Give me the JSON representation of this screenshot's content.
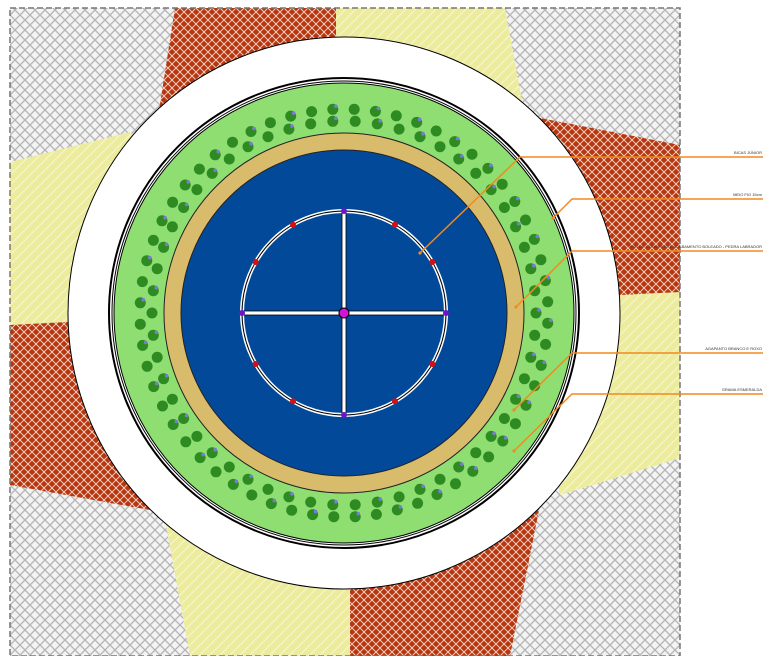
{
  "legend_labels": [
    "BICAS JÚNIOR",
    "MEIO FIO 15cm",
    "PISO DE CONCRETO E ACABAMENTO BOLEADO - PEDRA LABRADOR",
    "AGAPANTO BRANCO E ROXO",
    "GRAMA ESMERALDA"
  ],
  "colors": {
    "pavement_gray": "#b8b8b8",
    "brick_red": "#b8360f",
    "paver_yellow": "#ecec9c",
    "walkway_white": "#ffffff",
    "lawn_green": "#8ede72",
    "shrub_green": "#2e8b22",
    "flower_purple": "#7a7ad6",
    "border_tan": "#d9bb6c",
    "water_blue": "#03499a",
    "leader_orange": "#f28a1e",
    "nozzle_red": "#d41010",
    "nozzle_purple": "#6a16c8",
    "center_magenta": "#d414d4"
  }
}
